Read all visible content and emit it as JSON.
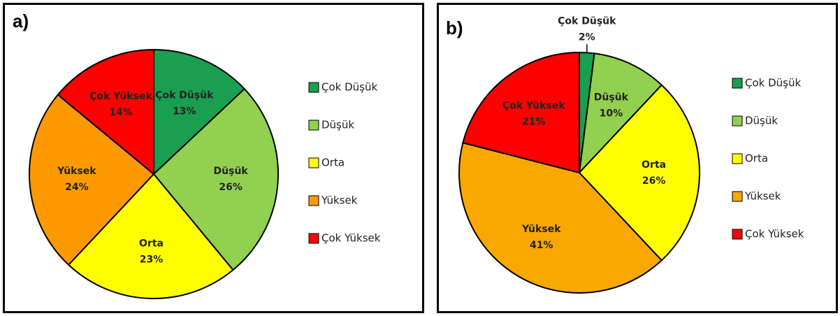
{
  "chart_data": [
    {
      "type": "pie",
      "label": "a)",
      "categories": [
        "Çok Düşük",
        "Düşük",
        "Orta",
        "Yüksek",
        "Çok Yüksek"
      ],
      "values": [
        13,
        26,
        23,
        24,
        14
      ],
      "value_labels": [
        "13%",
        "26%",
        "23%",
        "24%",
        "14%"
      ],
      "colors": [
        "#1a9e50",
        "#92d050",
        "#ffff00",
        "#ff9900",
        "#ff0000"
      ],
      "legend": "right"
    },
    {
      "type": "pie",
      "label": "b)",
      "categories": [
        "Çok Düşük",
        "Düşük",
        "Orta",
        "Yüksek",
        "Çok Yüksek"
      ],
      "values": [
        2,
        10,
        26,
        41,
        21
      ],
      "value_labels": [
        "2%",
        "10%",
        "26%",
        "41%",
        "21%"
      ],
      "colors": [
        "#1a9e50",
        "#92d050",
        "#ffff00",
        "#f8a800",
        "#ff0000"
      ],
      "legend": "right"
    }
  ]
}
